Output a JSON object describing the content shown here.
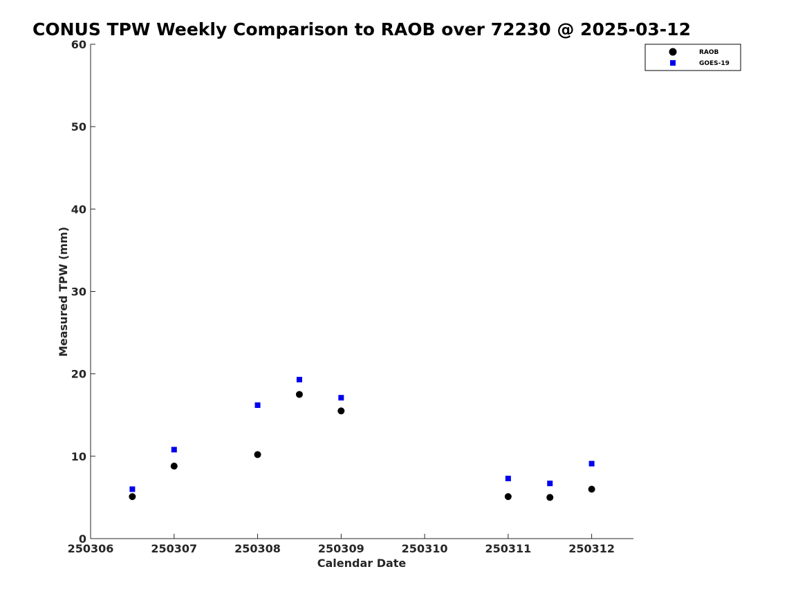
{
  "chart_data": {
    "type": "scatter",
    "title": "CONUS TPW Weekly Comparison to RAOB over 72230 @ 2025-03-12",
    "xlabel": "Calendar Date",
    "ylabel": "Measured TPW (mm)",
    "xlim": [
      250306,
      250312.5
    ],
    "ylim": [
      0,
      60
    ],
    "xticks": [
      250306,
      250307,
      250308,
      250309,
      250310,
      250311,
      250312
    ],
    "xtick_labels": [
      "250306",
      "250307",
      "250308",
      "250309",
      "250310",
      "250311",
      "250312"
    ],
    "yticks": [
      0,
      10,
      20,
      30,
      40,
      50,
      60
    ],
    "ytick_labels": [
      "0",
      "10",
      "20",
      "30",
      "40",
      "50",
      "60"
    ],
    "grid": false,
    "legend_position": "top-right",
    "series": [
      {
        "name": "RAOB",
        "marker": "circle",
        "color": "#000000",
        "x": [
          250306.5,
          250307,
          250308,
          250308.5,
          250309,
          250311,
          250311.5,
          250312
        ],
        "y": [
          5.1,
          8.8,
          10.2,
          17.5,
          15.5,
          5.1,
          5.0,
          6.0
        ]
      },
      {
        "name": "GOES-19",
        "marker": "square",
        "color": "#0000ee",
        "x": [
          250306.5,
          250307,
          250308,
          250308.5,
          250309,
          250311,
          250311.5,
          250312
        ],
        "y": [
          6.0,
          10.8,
          16.2,
          19.3,
          17.1,
          7.3,
          6.7,
          9.1
        ]
      }
    ]
  }
}
